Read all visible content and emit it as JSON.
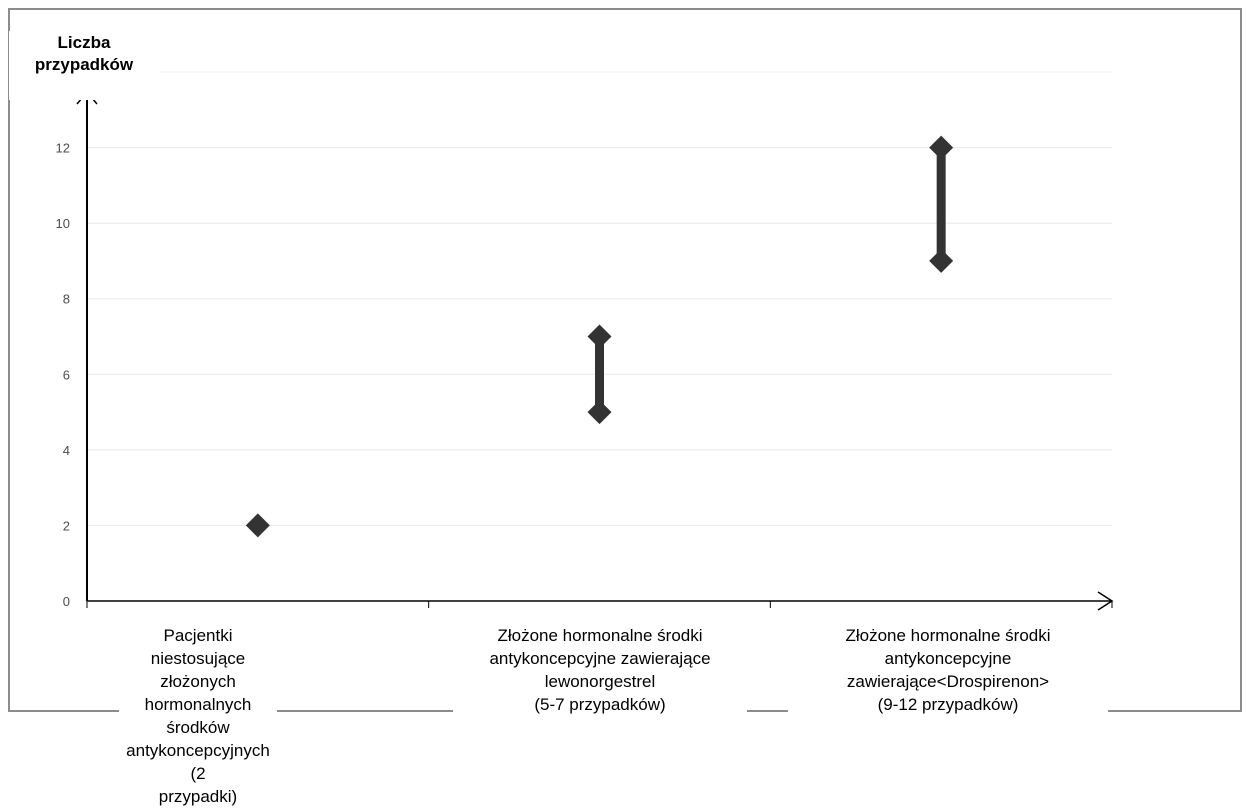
{
  "colors": {
    "marker": "#333333",
    "axis": "#000000",
    "grid": "#e8e8e8",
    "frame": "#8c8c8c",
    "tick_text": "#4d4d4d"
  },
  "chart_data": {
    "type": "scatter",
    "title": "",
    "ylabel_lines": [
      "Liczba",
      "przypadków"
    ],
    "xlabel": "",
    "ylim": [
      0,
      14
    ],
    "yticks": [
      0,
      2,
      4,
      6,
      8,
      10,
      12
    ],
    "grid": true,
    "legend": "none",
    "categories": [
      {
        "label_lines": [
          "Pacjentki niestosujące",
          "złożonych hormonalnych",
          "środków",
          "antykoncepcyjnych (2",
          "przypadki)"
        ],
        "low": 2,
        "high": 2
      },
      {
        "label_lines": [
          "Złożone hormonalne środki",
          "antykoncepcyjne zawierające",
          "lewonorgestrel",
          "(5-7 przypadków)"
        ],
        "low": 5,
        "high": 7
      },
      {
        "label_lines": [
          "Złożone hormonalne środki",
          "antykoncepcyjne",
          "zawierające<Drospirenon>",
          "(9-12 przypadków)"
        ],
        "low": 9,
        "high": 12
      }
    ]
  }
}
